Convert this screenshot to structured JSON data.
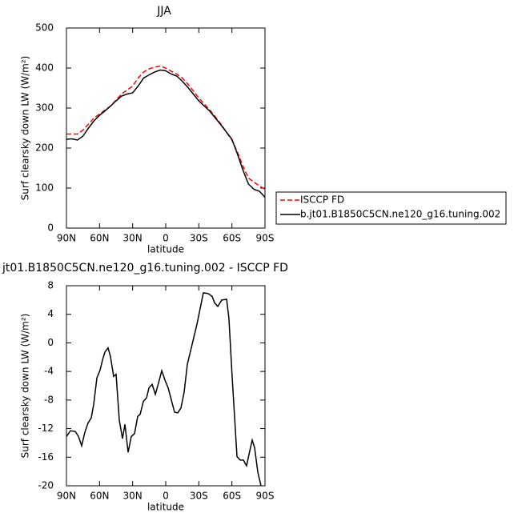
{
  "chart_data": [
    {
      "type": "line",
      "title": "JJA",
      "x_label": "latitude",
      "y_label": "Surf clearsky down LW (W/m²)",
      "x": [
        90,
        85,
        80,
        75,
        70,
        65,
        60,
        55,
        50,
        45,
        40,
        35,
        30,
        25,
        20,
        15,
        10,
        5,
        0,
        -5,
        -10,
        -15,
        -20,
        -25,
        -30,
        -35,
        -40,
        -45,
        -50,
        -55,
        -60,
        -65,
        -70,
        -75,
        -80,
        -85,
        -90
      ],
      "series": [
        {
          "name": "ISCCP FD",
          "color": "#ff0000",
          "dash": true,
          "values": [
            235,
            235,
            235,
            245,
            260,
            275,
            285,
            295,
            305,
            320,
            335,
            345,
            355,
            375,
            390,
            398,
            402,
            405,
            400,
            392,
            385,
            375,
            360,
            343,
            325,
            310,
            295,
            278,
            260,
            240,
            220,
            190,
            155,
            125,
            115,
            105,
            97
          ]
        },
        {
          "name": "b.jt01.B1850C5CN.ne120_g16.tuning.002",
          "color": "#000000",
          "dash": false,
          "values": [
            222,
            223,
            220,
            230,
            250,
            268,
            282,
            293,
            305,
            318,
            330,
            335,
            338,
            355,
            375,
            383,
            390,
            395,
            393,
            385,
            380,
            367,
            352,
            335,
            318,
            305,
            292,
            275,
            258,
            240,
            222,
            185,
            145,
            110,
            97,
            92,
            77
          ]
        }
      ],
      "xlim": [
        90,
        -90
      ],
      "ylim": [
        0,
        500
      ],
      "xticks": [
        {
          "value": 90,
          "label": "90N"
        },
        {
          "value": 60,
          "label": "60N"
        },
        {
          "value": 30,
          "label": "30N"
        },
        0,
        {
          "value": -30,
          "label": "30S"
        },
        {
          "value": -60,
          "label": "60S"
        },
        {
          "value": -90,
          "label": "90S"
        }
      ],
      "yticks": [
        0,
        100,
        200,
        300,
        400,
        500
      ],
      "legend": "right"
    },
    {
      "type": "line",
      "title": "jt01.B1850C5CN.ne120_g16.tuning.002 - ISCCP FD",
      "x_label": "latitude",
      "y_label": "Surf clearsky down LW (W/m²)",
      "x": [
        90,
        86.4,
        82.0,
        79.1,
        76.2,
        73.3,
        70.4,
        67.5,
        65.3,
        62.4,
        59.5,
        57.3,
        55.2,
        52.3,
        50.1,
        47.2,
        45.0,
        42.1,
        39.2,
        37.0,
        34.1,
        31.2,
        28.3,
        25.4,
        23.2,
        20.3,
        17.4,
        15.2,
        12.3,
        9.4,
        6.5,
        3.6,
        0.7,
        -2.2,
        -5.1,
        -8.0,
        -10.9,
        -13.8,
        -16.7,
        -19.6,
        -23.2,
        -28.3,
        -34.1,
        -38.5,
        -42.1,
        -44.3,
        -47.2,
        -50.8,
        -55.2,
        -57.3,
        -60.2,
        -62.4,
        -64.6,
        -67.5,
        -70.4,
        -73.3,
        -75.5,
        -78.4,
        -80.6,
        -83.5,
        -86.4
      ],
      "series": [
        {
          "color": "#000000",
          "dash": false,
          "values": [
            -13.1,
            -12.3,
            -12.4,
            -13.1,
            -14.4,
            -12.5,
            -11.2,
            -10.5,
            -8.6,
            -4.9,
            -3.8,
            -2.4,
            -1.3,
            -0.7,
            -1.9,
            -4.7,
            -4.4,
            -10.8,
            -13.4,
            -11.4,
            -15.3,
            -13.1,
            -12.7,
            -10.3,
            -10.0,
            -8.2,
            -7.7,
            -6.3,
            -5.8,
            -7.2,
            -5.6,
            -3.9,
            -5.2,
            -6.3,
            -8.0,
            -9.7,
            -9.8,
            -9.1,
            -6.9,
            -3.0,
            -0.7,
            2.6,
            7.0,
            6.9,
            6.5,
            5.6,
            5.1,
            6.0,
            6.1,
            3.4,
            -4.7,
            -10.3,
            -15.9,
            -16.4,
            -16.4,
            -17.2,
            -15.6,
            -13.6,
            -14.7,
            -18.1,
            -20.0
          ]
        }
      ],
      "xlim": [
        90,
        -90
      ],
      "ylim": [
        -20,
        8
      ],
      "xticks": [
        {
          "value": 90,
          "label": "90N"
        },
        {
          "value": 60,
          "label": "60N"
        },
        {
          "value": 30,
          "label": "30N"
        },
        0,
        {
          "value": -30,
          "label": "30S"
        },
        {
          "value": -60,
          "label": "60S"
        },
        {
          "value": -90,
          "label": "90S"
        }
      ],
      "yticks": [
        -20,
        -16,
        -12,
        -8,
        -4,
        0,
        4,
        8
      ]
    }
  ]
}
